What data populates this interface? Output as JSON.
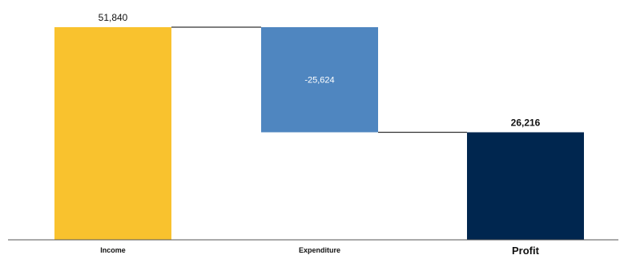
{
  "chart_data": {
    "type": "waterfall",
    "title": "",
    "xlabel": "",
    "ylabel": "",
    "categories": [
      "Income",
      "Expenditure",
      "Profit"
    ],
    "values": [
      51840,
      -25624,
      26216
    ],
    "data_labels": [
      "51,840",
      "-25,624",
      "26,216"
    ],
    "ylim": [
      0,
      51840
    ],
    "grid": false,
    "legend": "none",
    "colors": {
      "income": "#F9C22E",
      "expenditure": "#4F86C0",
      "profit": "#00264F",
      "connector": "#333333",
      "axis": "#555555",
      "label_dark": "#111111",
      "label_light": "#ffffff"
    }
  }
}
